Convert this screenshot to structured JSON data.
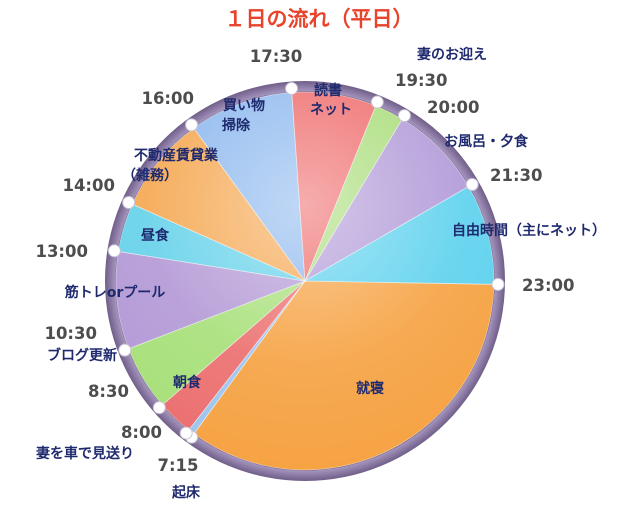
{
  "chart_data": {
    "type": "pie",
    "title": "１日の流れ（平日）",
    "unit": "minutes",
    "segments": [
      {
        "label": "起床",
        "lines": [
          "起床"
        ],
        "start": "7:15",
        "end": "8:00",
        "minutes": 45,
        "color": "#9fc5ee"
      },
      {
        "label": "妻を車で見送り",
        "lines": [
          "妻を車で見送り"
        ],
        "start": "8:00",
        "end": "8:30",
        "minutes": 30,
        "color": "#ec7070"
      },
      {
        "label": "朝食",
        "lines": [
          "朝食"
        ],
        "start": "8:30",
        "end": "10:30",
        "minutes": 120,
        "color": "#a8e07a"
      },
      {
        "label": "ブログ更新",
        "lines": [
          "ブログ更新"
        ],
        "start": "10:30",
        "end": "13:00",
        "minutes": 150,
        "color": "#b49ad6"
      },
      {
        "label": "筋トレorプール",
        "lines": [
          "筋トレorプール"
        ],
        "start": "13:00",
        "end": "14:00",
        "minutes": 60,
        "color": "#67d2ea"
      },
      {
        "label": "昼食",
        "lines": [
          "昼食"
        ],
        "start": "14:00",
        "end": "16:00",
        "minutes": 120,
        "color": "#f5a852"
      },
      {
        "label": "不動産賃貸業（雑務）",
        "lines": [
          "不動産賃貸業",
          "（雑務）"
        ],
        "start": "16:00",
        "end": "17:30",
        "minutes": 90,
        "color": "#8db8ee"
      },
      {
        "label": "買い物 掃除",
        "lines": [
          "買い物",
          "掃除"
        ],
        "start": "17:30",
        "end": "19:30",
        "minutes": 120,
        "color": "#ef6a6a"
      },
      {
        "label": "読書 ネット",
        "lines": [
          "読書",
          "ネット"
        ],
        "start": "19:30",
        "end": "20:00",
        "minutes": 30,
        "color": "#a9dd7a"
      },
      {
        "label": "妻のお迎え",
        "lines": [
          "妻のお迎え"
        ],
        "start": "20:00",
        "end": "21:30",
        "minutes": 90,
        "color": "#b19ad8"
      },
      {
        "label": "お風呂・夕食",
        "lines": [
          "お風呂・夕食"
        ],
        "start": "21:30",
        "end": "23:00",
        "minutes": 90,
        "color": "#5fd2ee"
      },
      {
        "label": "自由時間（主にネット）",
        "lines": [
          "自由時間（主にネット）"
        ],
        "start": "23:00",
        "end": "7:15",
        "minutes": 495,
        "color": "#f6a344"
      },
      {
        "label": "就寝",
        "lines": [
          "就寝"
        ]
      }
    ],
    "time_labels": [
      "7:15",
      "8:00",
      "8:30",
      "10:30",
      "13:00",
      "14:00",
      "16:00",
      "17:30",
      "19:30",
      "20:00",
      "21:30",
      "23:00"
    ],
    "ring_color": "#8d7aa6"
  }
}
